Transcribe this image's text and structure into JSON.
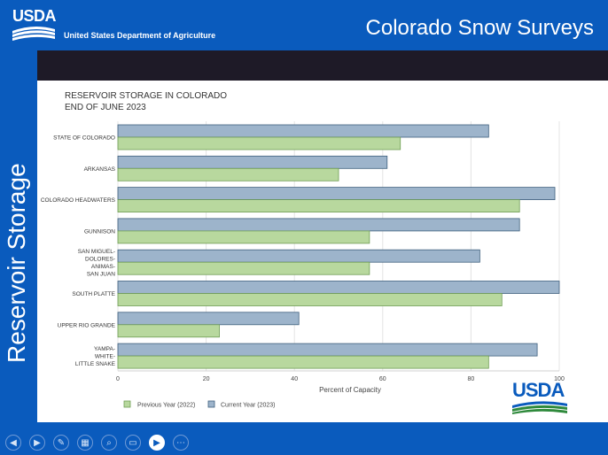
{
  "header": {
    "logo_text": "USDA",
    "department": "United States Department of Agriculture",
    "title": "Colorado Snow Surveys"
  },
  "sidebar": {
    "vertical_title": "Reservoir Storage"
  },
  "corner_logo_text": "USDA",
  "controls": [
    {
      "name": "previous-slide-button",
      "glyph": "◀"
    },
    {
      "name": "next-slide-button",
      "glyph": "▶"
    },
    {
      "name": "pen-tool-button",
      "glyph": "✎"
    },
    {
      "name": "slides-grid-button",
      "glyph": "▦"
    },
    {
      "name": "zoom-button",
      "glyph": "⌕"
    },
    {
      "name": "subtitles-button",
      "glyph": "▭"
    },
    {
      "name": "camera-button",
      "glyph": "▶"
    },
    {
      "name": "more-options-button",
      "glyph": "⋯"
    }
  ],
  "colors": {
    "current": "#9db4cb",
    "current_stroke": "#3f607e",
    "previous": "#b8d89e",
    "previous_stroke": "#6f9d54",
    "brand_blue": "#0a5bbd"
  },
  "chart_data": {
    "type": "bar",
    "orientation": "horizontal",
    "title": "RESERVOIR STORAGE IN COLORADO",
    "subtitle": "END OF JUNE 2023",
    "xlabel": "Percent of Capacity",
    "ylabel": "",
    "xlim": [
      0,
      100
    ],
    "xticks": [
      0,
      20,
      40,
      60,
      80,
      100
    ],
    "grid": true,
    "legend_position": "bottom-left",
    "categories": [
      [
        "STATE OF COLORADO"
      ],
      [
        "ARKANSAS"
      ],
      [
        "COLORADO HEADWATERS"
      ],
      [
        "GUNNISON"
      ],
      [
        "SAN MIGUEL-",
        "DOLORES-",
        "ANIMAS-",
        "SAN JUAN"
      ],
      [
        "SOUTH PLATTE"
      ],
      [
        "UPPER RIO GRANDE"
      ],
      [
        "YAMPA-",
        "WHITE-",
        "LITTLE SNAKE"
      ]
    ],
    "series": [
      {
        "name": "Current Year (2023)",
        "values": [
          84,
          61,
          99,
          91,
          82,
          100,
          41,
          95
        ]
      },
      {
        "name": "Previous Year (2022)",
        "values": [
          64,
          50,
          91,
          57,
          57,
          87,
          23,
          84
        ]
      }
    ],
    "legend": [
      "Previous Year (2022)",
      "Current Year (2023)"
    ]
  }
}
